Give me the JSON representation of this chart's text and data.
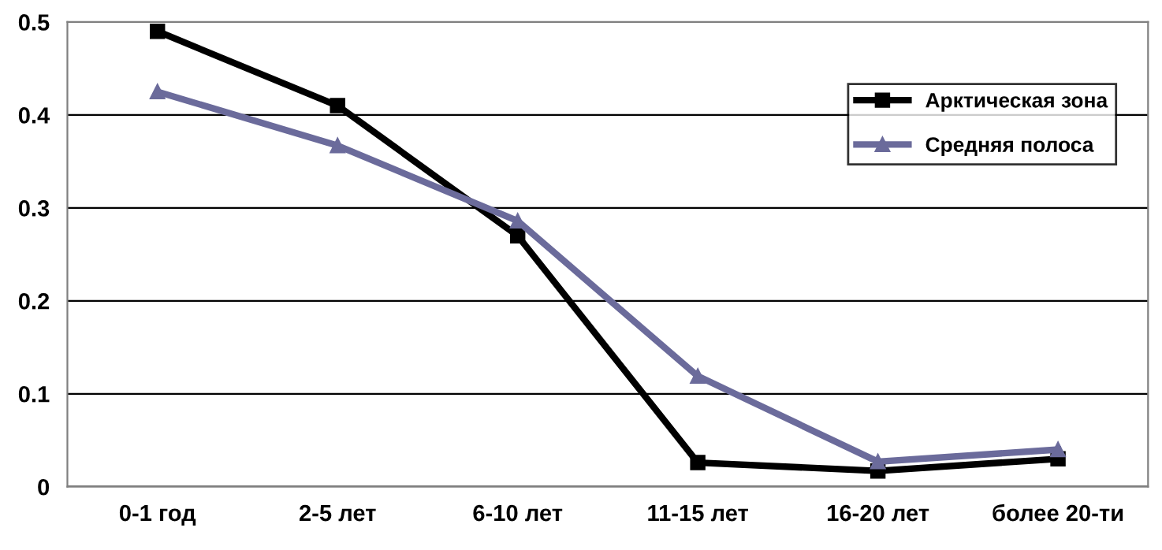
{
  "chart_data": {
    "type": "line",
    "categories": [
      "0-1 год",
      "2-5 лет",
      "6-10 лет",
      "11-15 лет",
      "16-20 лет",
      "более 20-ти"
    ],
    "series": [
      {
        "name": "Арктическая зона",
        "color": "#000000",
        "marker": "square",
        "values": [
          0.49,
          0.41,
          0.27,
          0.026,
          0.017,
          0.03
        ]
      },
      {
        "name": "Средняя полоса",
        "color": "#6b6b9b",
        "marker": "triangle",
        "values": [
          0.425,
          0.367,
          0.286,
          0.119,
          0.027,
          0.04
        ]
      }
    ],
    "ylim": [
      0,
      0.5
    ],
    "yticks": [
      {
        "value": 0,
        "label": "0"
      },
      0.1,
      0.2,
      0.3,
      0.4,
      0.5
    ],
    "grid": "y",
    "legend": "right",
    "line_style": "solid"
  }
}
